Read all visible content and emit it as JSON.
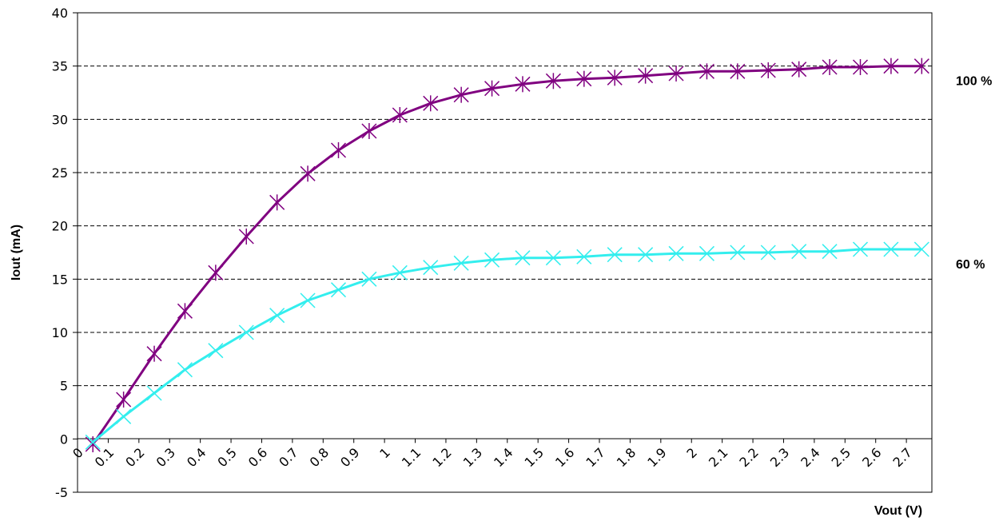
{
  "chart_data": {
    "type": "line",
    "title": "",
    "xlabel": "Vout (V)",
    "ylabel": "Iout (mA)",
    "ylim": [
      -5,
      40
    ],
    "y_ticks": [
      "-5",
      "0",
      "5",
      "10",
      "15",
      "20",
      "25",
      "30",
      "35",
      "40"
    ],
    "x_categories": [
      "0",
      "0.1",
      "0.2",
      "0.3",
      "0.4",
      "0.5",
      "0.6",
      "0.7",
      "0.8",
      "0.9",
      "1",
      "1.1",
      "1.2",
      "1.3",
      "1.4",
      "1.5",
      "1.6",
      "1.7",
      "1.8",
      "1.9",
      "2",
      "2.1",
      "2.2",
      "2.3",
      "2.4",
      "2.5",
      "2.6",
      "2.7"
    ],
    "grid": true,
    "legend": "series labels at right end of each line",
    "series": [
      {
        "name": "100 %",
        "color": "#800080",
        "marker": "star",
        "x": [
          0.05,
          0.15,
          0.25,
          0.35,
          0.45,
          0.55,
          0.65,
          0.75,
          0.85,
          0.95,
          1.05,
          1.15,
          1.25,
          1.35,
          1.45,
          1.55,
          1.65,
          1.75,
          1.85,
          1.95,
          2.05,
          2.15,
          2.25,
          2.35,
          2.45,
          2.55,
          2.65,
          2.75
        ],
        "values": [
          -0.5,
          3.7,
          8.0,
          12.0,
          15.6,
          19.0,
          22.2,
          24.9,
          27.1,
          28.9,
          30.4,
          31.5,
          32.3,
          32.9,
          33.3,
          33.6,
          33.8,
          33.9,
          34.1,
          34.3,
          34.5,
          34.5,
          34.6,
          34.7,
          34.9,
          34.9,
          35.0,
          35.0
        ]
      },
      {
        "name": "60 %",
        "color": "#33eeee",
        "marker": "x",
        "x": [
          0.05,
          0.15,
          0.25,
          0.35,
          0.45,
          0.55,
          0.65,
          0.75,
          0.85,
          0.95,
          1.05,
          1.15,
          1.25,
          1.35,
          1.45,
          1.55,
          1.65,
          1.75,
          1.85,
          1.95,
          2.05,
          2.15,
          2.25,
          2.35,
          2.45,
          2.55,
          2.65,
          2.75
        ],
        "values": [
          -0.3,
          2.1,
          4.3,
          6.5,
          8.3,
          10.0,
          11.6,
          13.0,
          14.0,
          15.0,
          15.6,
          16.1,
          16.5,
          16.8,
          17.0,
          17.0,
          17.1,
          17.3,
          17.3,
          17.4,
          17.4,
          17.5,
          17.5,
          17.6,
          17.6,
          17.8,
          17.8,
          17.8
        ]
      }
    ]
  }
}
